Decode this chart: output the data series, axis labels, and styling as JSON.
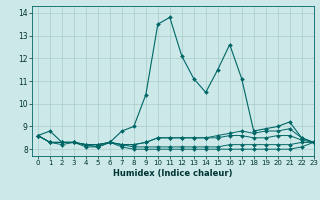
{
  "xlabel": "Humidex (Indice chaleur)",
  "ylabel": "",
  "xlim": [
    -0.5,
    23
  ],
  "ylim": [
    7.7,
    14.3
  ],
  "xticks": [
    0,
    1,
    2,
    3,
    4,
    5,
    6,
    7,
    8,
    9,
    10,
    11,
    12,
    13,
    14,
    15,
    16,
    17,
    18,
    19,
    20,
    21,
    22,
    23
  ],
  "yticks": [
    8,
    9,
    10,
    11,
    12,
    13,
    14
  ],
  "background_color": "#cce8e8",
  "grid_color": "#aacccc",
  "line_color": "#006666",
  "lines": [
    {
      "y": [
        8.6,
        8.8,
        8.3,
        8.3,
        8.2,
        8.1,
        8.3,
        8.8,
        9.0,
        10.4,
        13.5,
        13.8,
        12.1,
        11.1,
        10.5,
        11.5,
        12.6,
        11.1,
        8.8,
        8.9,
        9.0,
        9.2,
        8.5,
        8.3
      ],
      "marker": true
    },
    {
      "y": [
        8.6,
        8.3,
        8.2,
        8.3,
        8.1,
        8.1,
        8.3,
        8.1,
        8.0,
        8.0,
        8.0,
        8.0,
        8.0,
        8.0,
        8.0,
        8.0,
        8.0,
        8.0,
        8.0,
        8.0,
        8.0,
        8.0,
        8.1,
        8.3
      ],
      "marker": true
    },
    {
      "y": [
        8.6,
        8.3,
        8.3,
        8.3,
        8.2,
        8.2,
        8.3,
        8.2,
        8.1,
        8.1,
        8.1,
        8.1,
        8.1,
        8.1,
        8.1,
        8.1,
        8.2,
        8.2,
        8.2,
        8.2,
        8.2,
        8.2,
        8.3,
        8.3
      ],
      "marker": true
    },
    {
      "y": [
        8.6,
        8.3,
        8.3,
        8.3,
        8.2,
        8.2,
        8.3,
        8.2,
        8.2,
        8.3,
        8.5,
        8.5,
        8.5,
        8.5,
        8.5,
        8.5,
        8.6,
        8.6,
        8.5,
        8.5,
        8.6,
        8.6,
        8.4,
        8.3
      ],
      "marker": true
    },
    {
      "y": [
        8.6,
        8.3,
        8.3,
        8.3,
        8.2,
        8.2,
        8.3,
        8.2,
        8.2,
        8.3,
        8.5,
        8.5,
        8.5,
        8.5,
        8.5,
        8.6,
        8.7,
        8.8,
        8.7,
        8.8,
        8.8,
        8.9,
        8.5,
        8.3
      ],
      "marker": true
    }
  ]
}
